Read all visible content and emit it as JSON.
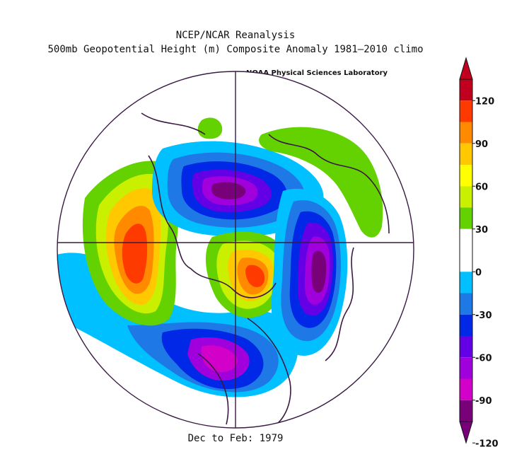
{
  "title": {
    "line1": "NCEP/NCAR Reanalysis",
    "line2": "500mb Geopotential Height (m) Composite Anomaly 1981–2010 climo"
  },
  "credit": "NOAA Physical Sciences Laboratory",
  "period": "Dec to Feb: 1979",
  "colorbar": {
    "ticks": [
      "120",
      "90",
      "60",
      "30",
      "0",
      "-30",
      "-60",
      "-90",
      "-120"
    ],
    "colors": [
      "#c0001e",
      "#ff3a00",
      "#ff8a00",
      "#ffc800",
      "#ffff00",
      "#c8f000",
      "#64d200",
      "#ffffff",
      "#ffffff",
      "#00c0ff",
      "#1e78e6",
      "#0028e6",
      "#6400e6",
      "#a000dc",
      "#d200c8",
      "#780078"
    ]
  },
  "map": {
    "projection": "north polar stereographic",
    "regions": [
      {
        "name": "aleutian-ridge",
        "sign": "positive",
        "peak": 120
      },
      {
        "name": "greenland-ridge",
        "sign": "positive",
        "peak": 110
      },
      {
        "name": "eurasian-arctic-positive",
        "sign": "positive",
        "peak": 45
      },
      {
        "name": "siberian-trough",
        "sign": "negative",
        "peak": -120
      },
      {
        "name": "europe-trough",
        "sign": "negative",
        "peak": -120
      },
      {
        "name": "north-america-trough",
        "sign": "negative",
        "peak": -100
      }
    ]
  }
}
